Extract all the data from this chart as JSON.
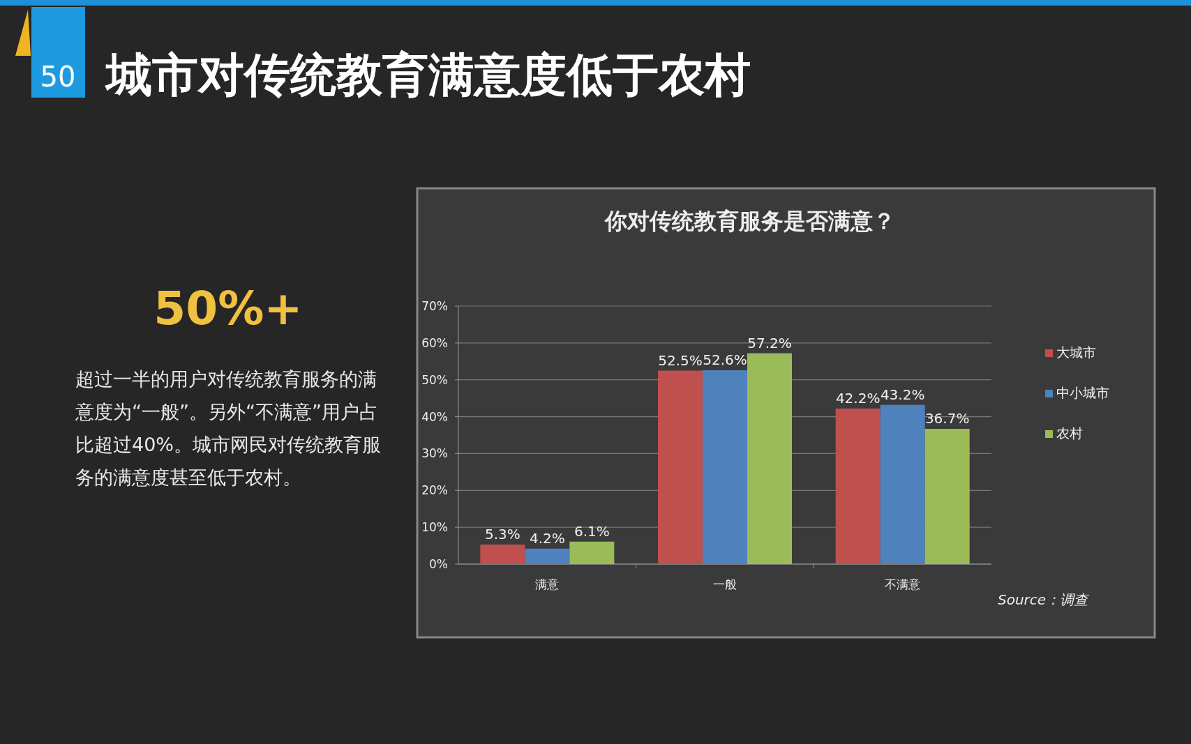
{
  "chart_data": {
    "type": "bar",
    "title": "城市对传统教育满意度低于农村",
    "subtitle": "你对传统教育服务是否满意？",
    "categories": [
      "满意",
      "一般",
      "不满意"
    ],
    "series": [
      {
        "name": "大城市",
        "color": "#c0504d",
        "values": [
          5.3,
          52.5,
          42.2
        ],
        "value_labels": [
          "5.3%",
          "52.5%",
          "42.2%"
        ]
      },
      {
        "name": "中小城市",
        "color": "#4f81bd",
        "values": [
          4.2,
          52.6,
          43.2
        ],
        "value_labels": [
          "4.2%",
          "52.6%",
          "43.2%"
        ]
      },
      {
        "name": "农村",
        "color": "#9bbb59",
        "values": [
          6.1,
          57.2,
          36.7
        ],
        "value_labels": [
          "6.1%",
          "57.2%",
          "36.7%"
        ]
      }
    ],
    "ylim": [
      0,
      70
    ],
    "yticks": [
      {
        "value": 0,
        "label": "0%"
      },
      {
        "value": 10,
        "label": "10%"
      },
      {
        "value": 20,
        "label": "20%"
      },
      {
        "value": 30,
        "label": "30%"
      },
      {
        "value": 40,
        "label": "40%"
      },
      {
        "value": 50,
        "label": "50%"
      },
      {
        "value": 60,
        "label": "60%"
      },
      {
        "value": 70,
        "label": "70%"
      }
    ],
    "grid": "y",
    "legend": "right",
    "annotations": [
      "50",
      "50%+",
      "超过一半的用户对传统教育服务的满意度为“一般”。另外“不满意”用户占比超过40%。城市网民对传统教育服务的满意度甚至低于农村。",
      "Source：调查"
    ]
  }
}
